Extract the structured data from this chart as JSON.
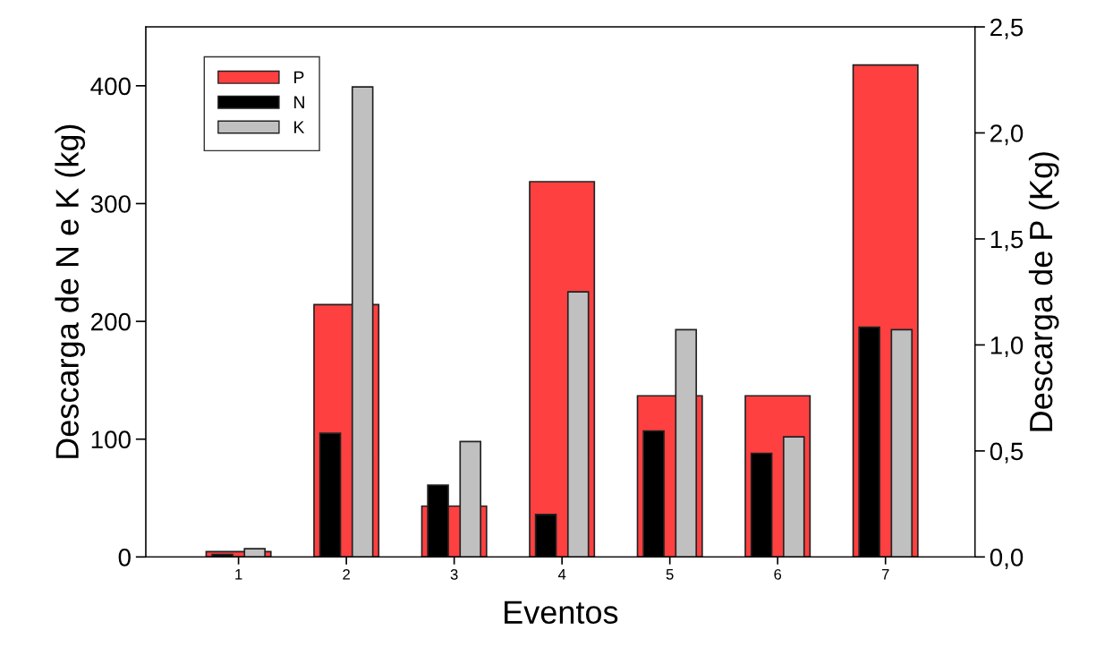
{
  "chart_data": {
    "type": "bar",
    "xlabel": "Eventos",
    "ylabel": "Descarga de N e K (kg)",
    "y2label": "Descarga de P (Kg)",
    "categories": [
      "1",
      "2",
      "3",
      "4",
      "5",
      "6",
      "7"
    ],
    "series": [
      {
        "name": "P",
        "color": "#ff4040",
        "axis": "y2",
        "values": [
          0.025,
          1.19,
          0.24,
          1.77,
          0.76,
          0.76,
          2.32
        ]
      },
      {
        "name": "N",
        "color": "#000000",
        "values": [
          2,
          105,
          61,
          36,
          107,
          88,
          195
        ]
      },
      {
        "name": "K",
        "color": "#c0c0c0",
        "values": [
          7,
          399,
          98,
          225,
          193,
          102,
          193
        ]
      }
    ],
    "ylim": [
      0,
      450
    ],
    "yticks": [
      0,
      100,
      200,
      300,
      400
    ],
    "y2lim": [
      0,
      2.5
    ],
    "y2ticks": [
      {
        "value": 0,
        "label": "0,0"
      },
      {
        "value": 0.5,
        "label": "0,5"
      },
      {
        "value": 1,
        "label": "1,0"
      },
      {
        "value": 1.5,
        "label": "1,5"
      },
      {
        "value": 2,
        "label": "2,0"
      },
      {
        "value": 2.5,
        "label": "2,5"
      }
    ],
    "legend": "top left",
    "grid": false
  }
}
